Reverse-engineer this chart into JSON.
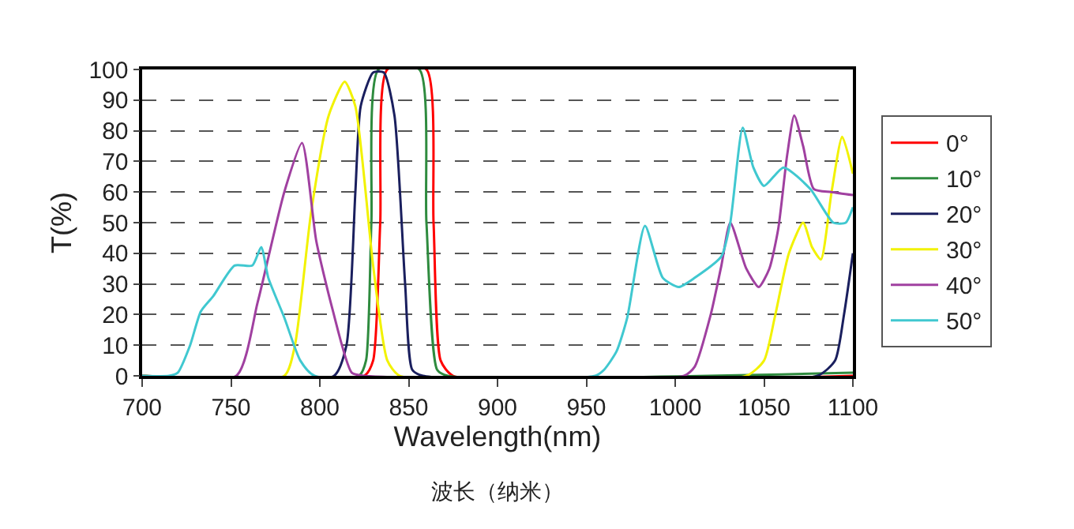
{
  "chart_data": {
    "type": "line",
    "xlabel": "Wavelength(nm)",
    "ylabel": "T(%)",
    "annotations": [
      "波长（纳米）"
    ],
    "xlim": [
      700,
      1100
    ],
    "xticks": [
      700,
      750,
      800,
      850,
      900,
      950,
      1000,
      1050,
      1100
    ],
    "ylim": [
      0,
      100
    ],
    "yticks": [
      0,
      10,
      20,
      30,
      40,
      50,
      60,
      70,
      80,
      90,
      100
    ],
    "grid": "y",
    "legend": "right",
    "line_style": "solid",
    "marker": "none",
    "series": [
      {
        "name": "0°",
        "color": "#ff0000",
        "x": [
          700,
          825,
          830,
          834,
          838,
          860,
          864,
          868,
          875,
          1100
        ],
        "values": [
          0,
          0,
          5,
          50,
          100,
          100,
          50,
          5,
          0,
          0
        ]
      },
      {
        "name": "10°",
        "color": "#2e8b3e",
        "x": [
          700,
          822,
          826,
          829,
          833,
          856,
          860,
          866,
          872,
          1100
        ],
        "values": [
          0,
          0,
          5,
          50,
          100,
          100,
          50,
          2,
          0,
          1
        ]
      },
      {
        "name": "20°",
        "color": "#1a1f5e",
        "x": [
          700,
          808,
          815,
          820,
          823,
          830,
          836,
          842,
          848,
          852,
          858,
          1080,
          1090,
          1095,
          1100
        ],
        "values": [
          0,
          0,
          10,
          60,
          88,
          99,
          99,
          85,
          30,
          2,
          0,
          0,
          5,
          20,
          40
        ]
      },
      {
        "name": "30°",
        "color": "#f2f200",
        "x": [
          700,
          780,
          786,
          795,
          805,
          814,
          820,
          830,
          838,
          845,
          1040,
          1050,
          1056,
          1064,
          1072,
          1077,
          1082,
          1088,
          1094,
          1100
        ],
        "values": [
          0,
          0,
          10,
          53,
          85,
          96,
          88,
          36,
          5,
          0,
          0,
          5,
          19,
          40,
          50,
          42,
          38,
          60,
          78,
          66
        ]
      },
      {
        "name": "40°",
        "color": "#a040a0",
        "x": [
          700,
          753,
          765,
          780,
          790,
          798,
          807,
          818,
          825,
          1005,
          1011,
          1020,
          1026,
          1031,
          1040,
          1047,
          1053,
          1058,
          1063,
          1067,
          1072,
          1078,
          1088,
          1100
        ],
        "values": [
          0,
          0,
          24,
          60,
          76,
          44,
          22,
          1,
          0,
          0,
          3,
          20,
          36,
          50,
          35,
          29,
          35,
          48,
          72,
          85,
          75,
          61,
          60,
          59
        ]
      },
      {
        "name": "50°",
        "color": "#40c8d0",
        "x": [
          700,
          715,
          720,
          727,
          733,
          740,
          752,
          762,
          767,
          771,
          780,
          789,
          797,
          955,
          960,
          967,
          973,
          983,
          993,
          1002,
          1011,
          1026,
          1031,
          1038,
          1044,
          1050,
          1061,
          1076,
          1089,
          1096,
          1100
        ],
        "values": [
          0,
          0,
          1,
          10,
          21,
          26,
          36,
          36,
          42,
          32,
          19,
          5,
          0,
          0,
          2,
          8,
          19,
          49,
          32,
          29,
          32,
          39,
          50,
          81,
          68,
          62,
          68,
          61,
          50,
          50,
          55
        ]
      }
    ]
  }
}
